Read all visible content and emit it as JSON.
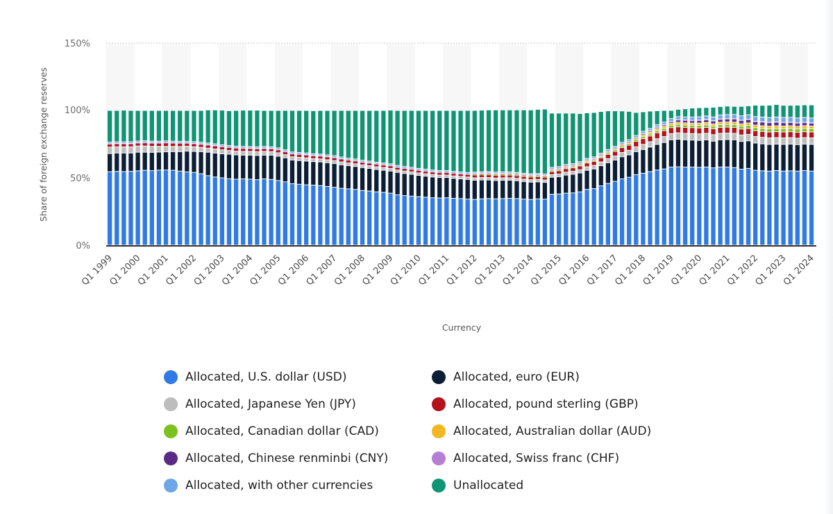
{
  "chart_data": {
    "type": "bar",
    "stacked": true,
    "title": "",
    "xlabel": "Currency",
    "ylabel": "Share of foreign exchange reserves",
    "ylim": [
      0,
      150
    ],
    "yticks": [
      "0%",
      "50%",
      "100%",
      "150%"
    ],
    "ytick_values": [
      0,
      50,
      100,
      150
    ],
    "grid": true,
    "legend_position": "bottom",
    "xtick_labels": [
      "Q1 1999",
      "Q1 2000",
      "Q1 2001",
      "Q1 2002",
      "Q1 2003",
      "Q1 2004",
      "Q1 2005",
      "Q1 2006",
      "Q1 2007",
      "Q1 2008",
      "Q1 2009",
      "Q1 2010",
      "Q1 2011",
      "Q1 2012",
      "Q1 2013",
      "Q1 2014",
      "Q1 2015",
      "Q1 2016",
      "Q1 2017",
      "Q1 2018",
      "Q1 2019",
      "Q1 2020",
      "Q1 2021",
      "Q1 2022",
      "Q1 2023",
      "Q1 2024"
    ],
    "categories_note_first": "Q1 1999",
    "categories_note_last": "Q1 2024",
    "series": [
      {
        "name": "Allocated, U.S. dollar (USD)",
        "color": "#2f7ae5",
        "values": [
          54.5,
          54.8,
          54.6,
          54.8,
          55.2,
          55.6,
          55.3,
          55.7,
          55.8,
          55.6,
          55.0,
          54.4,
          54.0,
          53.0,
          51.6,
          50.6,
          50.0,
          49.3,
          49.0,
          49.2,
          49.0,
          48.6,
          49.2,
          48.8,
          48.0,
          47.0,
          45.6,
          45.2,
          44.8,
          44.6,
          44.2,
          43.6,
          43.0,
          42.2,
          41.8,
          41.4,
          40.6,
          40.2,
          39.6,
          39.2,
          38.6,
          37.4,
          36.8,
          36.4,
          36.0,
          35.6,
          35.2,
          35.0,
          35.2,
          34.8,
          34.6,
          34.2,
          34.0,
          34.4,
          34.6,
          34.4,
          34.6,
          34.8,
          34.6,
          34.2,
          34.0,
          34.4,
          34.2,
          37.8,
          38.0,
          38.6,
          38.8,
          39.6,
          41.4,
          42.0,
          44.0,
          45.8,
          47.4,
          49.2,
          50.4,
          52.4,
          53.4,
          54.6,
          55.8,
          56.6,
          58.0,
          58.2,
          58.0,
          58.0,
          57.8,
          58.0,
          57.4,
          58.0,
          58.0,
          57.6,
          56.4,
          57.0,
          55.6,
          55.2,
          55.0,
          55.4,
          55.0,
          55.2,
          55.0,
          55.4,
          55.0
        ]
      },
      {
        "name": "Allocated, euro (EUR)",
        "color": "#0c1e36",
        "values": [
          13.5,
          13.6,
          13.8,
          13.6,
          13.8,
          13.4,
          13.6,
          13.4,
          13.5,
          13.8,
          14.4,
          15.4,
          15.6,
          16.4,
          17.4,
          17.8,
          17.8,
          18.2,
          18.0,
          17.6,
          17.8,
          18.0,
          17.6,
          18.0,
          18.0,
          17.8,
          17.6,
          17.6,
          17.6,
          17.4,
          17.6,
          17.6,
          17.6,
          17.4,
          17.2,
          17.0,
          17.0,
          16.8,
          16.6,
          16.4,
          16.4,
          16.6,
          16.4,
          16.2,
          15.8,
          15.6,
          15.4,
          15.2,
          15.0,
          14.8,
          14.6,
          14.6,
          14.2,
          14.0,
          13.8,
          13.6,
          13.6,
          13.4,
          13.2,
          13.0,
          12.8,
          12.6,
          12.4,
          12.6,
          12.8,
          13.4,
          13.8,
          14.0,
          14.2,
          14.6,
          15.0,
          15.4,
          15.8,
          16.4,
          16.6,
          17.0,
          17.6,
          18.2,
          19.0,
          19.6,
          20.2,
          20.4,
          20.2,
          20.0,
          20.0,
          20.2,
          19.8,
          20.2,
          20.4,
          20.6,
          20.6,
          20.4,
          20.2,
          20.0,
          19.8,
          19.6,
          19.8,
          19.8,
          19.6,
          19.6,
          19.8
        ]
      },
      {
        "name": "Allocated, Japanese Yen (JPY)",
        "color": "#bdbdbd",
        "values": [
          4.8,
          4.6,
          4.6,
          4.6,
          4.6,
          4.6,
          4.4,
          4.2,
          4.0,
          3.9,
          3.8,
          3.6,
          3.4,
          3.2,
          3.0,
          3.0,
          3.0,
          2.8,
          2.8,
          2.8,
          2.8,
          2.8,
          2.8,
          2.6,
          2.6,
          2.4,
          2.4,
          2.4,
          2.4,
          2.2,
          2.2,
          2.2,
          2.2,
          2.2,
          2.0,
          2.0,
          2.0,
          2.0,
          2.0,
          2.0,
          2.0,
          1.8,
          1.8,
          1.8,
          1.8,
          1.8,
          1.8,
          1.8,
          1.8,
          1.8,
          1.8,
          1.8,
          1.8,
          1.8,
          1.8,
          1.8,
          1.8,
          1.8,
          1.8,
          1.8,
          1.8,
          1.8,
          1.8,
          2.0,
          2.0,
          2.2,
          2.2,
          2.4,
          2.6,
          2.6,
          2.8,
          3.0,
          3.0,
          3.2,
          3.4,
          3.6,
          3.8,
          4.0,
          4.2,
          4.4,
          4.6,
          4.8,
          4.8,
          4.8,
          4.8,
          4.8,
          4.8,
          4.8,
          4.8,
          4.8,
          4.8,
          4.8,
          4.8,
          4.8,
          4.8,
          4.8,
          4.8,
          4.8,
          4.8,
          4.8,
          4.8
        ]
      },
      {
        "name": "Allocated, pound sterling (GBP)",
        "color": "#b5121b",
        "values": [
          2.2,
          2.2,
          2.2,
          2.2,
          2.2,
          2.4,
          2.4,
          2.4,
          2.6,
          2.4,
          2.4,
          2.2,
          2.2,
          2.2,
          2.2,
          2.2,
          2.2,
          2.2,
          2.2,
          2.2,
          2.2,
          2.2,
          2.2,
          2.2,
          2.2,
          2.2,
          2.2,
          2.2,
          2.2,
          2.2,
          2.2,
          2.2,
          2.2,
          2.2,
          2.2,
          2.2,
          2.0,
          2.0,
          2.0,
          2.0,
          2.0,
          2.0,
          2.0,
          2.0,
          2.0,
          2.0,
          2.0,
          2.0,
          2.0,
          2.0,
          2.0,
          2.0,
          2.0,
          2.0,
          2.0,
          2.0,
          2.0,
          2.0,
          2.0,
          2.0,
          2.0,
          2.0,
          2.0,
          2.2,
          2.4,
          2.6,
          2.6,
          2.8,
          2.8,
          3.0,
          3.0,
          3.2,
          3.4,
          3.6,
          3.8,
          4.0,
          4.2,
          4.2,
          4.4,
          4.4,
          4.4,
          4.4,
          4.4,
          4.4,
          4.4,
          4.4,
          4.4,
          4.4,
          4.4,
          4.4,
          4.4,
          4.4,
          4.4,
          4.4,
          4.4,
          4.4,
          4.4,
          4.4,
          4.4,
          4.4,
          4.4
        ]
      },
      {
        "name": "Allocated, Canadian dollar (CAD)",
        "color": "#7cc21f",
        "values": [
          0,
          0,
          0,
          0,
          0,
          0,
          0,
          0,
          0,
          0,
          0,
          0,
          0,
          0,
          0,
          0,
          0,
          0,
          0,
          0,
          0,
          0,
          0,
          0,
          0,
          0,
          0,
          0,
          0,
          0,
          0,
          0,
          0,
          0,
          0,
          0,
          0,
          0,
          0,
          0,
          0,
          0,
          0,
          0,
          0,
          0,
          0,
          0,
          0,
          0,
          0,
          0,
          0.5,
          0.5,
          0.6,
          0.6,
          0.6,
          0.6,
          0.6,
          0.6,
          0.6,
          0.6,
          0.6,
          0.8,
          0.8,
          0.8,
          0.8,
          0.9,
          1.0,
          1.0,
          1.0,
          1.1,
          1.2,
          1.2,
          1.3,
          1.4,
          1.5,
          1.5,
          1.6,
          1.7,
          1.8,
          1.8,
          1.8,
          1.8,
          1.9,
          1.9,
          1.9,
          2.0,
          2.0,
          2.1,
          2.1,
          2.2,
          2.2,
          2.3,
          2.4,
          2.4,
          2.4,
          2.4,
          2.4,
          2.5,
          2.4
        ]
      },
      {
        "name": "Allocated, Australian dollar (AUD)",
        "color": "#f2b722",
        "values": [
          0,
          0,
          0,
          0,
          0,
          0,
          0,
          0,
          0,
          0,
          0,
          0,
          0,
          0,
          0,
          0,
          0,
          0,
          0,
          0,
          0,
          0,
          0,
          0,
          0,
          0,
          0,
          0,
          0,
          0,
          0,
          0,
          0,
          0,
          0,
          0,
          0,
          0,
          0,
          0,
          0,
          0,
          0,
          0,
          0,
          0,
          0,
          0,
          0,
          0,
          0,
          0,
          0.5,
          0.5,
          0.6,
          0.6,
          0.6,
          0.6,
          0.6,
          0.6,
          0.6,
          0.6,
          0.6,
          0.8,
          0.8,
          0.8,
          0.8,
          0.8,
          0.9,
          0.9,
          1.0,
          1.0,
          1.1,
          1.2,
          1.2,
          1.3,
          1.4,
          1.4,
          1.5,
          1.5,
          1.6,
          1.6,
          1.6,
          1.6,
          1.7,
          1.7,
          1.7,
          1.8,
          1.8,
          1.8,
          1.8,
          1.9,
          1.9,
          1.9,
          1.9,
          2.0,
          2.0,
          2.0,
          2.0,
          2.0,
          2.0
        ]
      },
      {
        "name": "Allocated, Chinese renminbi (CNY)",
        "color": "#5b2a86",
        "values": [
          0,
          0,
          0,
          0,
          0,
          0,
          0,
          0,
          0,
          0,
          0,
          0,
          0,
          0,
          0,
          0,
          0,
          0,
          0,
          0,
          0,
          0,
          0,
          0,
          0,
          0,
          0,
          0,
          0,
          0,
          0,
          0,
          0,
          0,
          0,
          0,
          0,
          0,
          0,
          0,
          0,
          0,
          0,
          0,
          0,
          0,
          0,
          0,
          0,
          0,
          0,
          0,
          0,
          0,
          0,
          0,
          0,
          0,
          0,
          0,
          0,
          0,
          0,
          0,
          0,
          0,
          0,
          0,
          0,
          0,
          0,
          0,
          0,
          0,
          0,
          0,
          0.8,
          0.9,
          1.0,
          1.1,
          1.2,
          1.8,
          1.9,
          1.9,
          2.0,
          2.1,
          2.2,
          2.3,
          2.3,
          2.4,
          2.5,
          2.6,
          2.7,
          2.8,
          2.7,
          2.7,
          2.6,
          2.5,
          2.4,
          2.3,
          2.2
        ]
      },
      {
        "name": "Allocated, Swiss franc (CHF)",
        "color": "#b57fd6",
        "values": [
          0.3,
          0.3,
          0.3,
          0.3,
          0.3,
          0.3,
          0.3,
          0.3,
          0.3,
          0.3,
          0.3,
          0.3,
          0.4,
          0.4,
          0.4,
          0.4,
          0.3,
          0.3,
          0.3,
          0.3,
          0.2,
          0.2,
          0.2,
          0.2,
          0.2,
          0.2,
          0.2,
          0.2,
          0.2,
          0.2,
          0.2,
          0.2,
          0.2,
          0.2,
          0.2,
          0.2,
          0.2,
          0.2,
          0.2,
          0.2,
          0.2,
          0.2,
          0.2,
          0.2,
          0.2,
          0.2,
          0.2,
          0.2,
          0.2,
          0.2,
          0.2,
          0.2,
          0.2,
          0.2,
          0.2,
          0.2,
          0.2,
          0.2,
          0.2,
          0.2,
          0.2,
          0.2,
          0.2,
          0.3,
          0.3,
          0.3,
          0.3,
          0.3,
          0.3,
          0.2,
          0.2,
          0.2,
          0.2,
          0.2,
          0.2,
          0.2,
          0.2,
          0.2,
          0.2,
          0.2,
          0.2,
          0.2,
          0.2,
          0.2,
          0.2,
          0.2,
          0.2,
          0.2,
          0.2,
          0.2,
          0.2,
          0.2,
          0.2,
          0.2,
          0.2,
          0.2,
          0.2,
          0.2,
          0.2,
          0.2,
          0.2
        ]
      },
      {
        "name": "Allocated, with other currencies",
        "color": "#6fa6e6",
        "values": [
          1.2,
          1.2,
          1.2,
          1.2,
          1.2,
          1.2,
          1.2,
          1.2,
          1.2,
          1.2,
          1.2,
          1.2,
          1.2,
          1.2,
          1.2,
          1.2,
          1.2,
          1.2,
          1.2,
          1.2,
          1.2,
          1.2,
          1.2,
          1.2,
          1.2,
          1.2,
          1.2,
          1.2,
          1.2,
          1.2,
          1.2,
          1.2,
          1.2,
          1.2,
          1.2,
          1.2,
          1.2,
          1.2,
          1.2,
          1.2,
          1.2,
          1.2,
          1.2,
          1.2,
          1.2,
          1.2,
          1.2,
          1.2,
          1.2,
          1.2,
          1.2,
          1.2,
          1.0,
          1.0,
          1.0,
          1.0,
          1.0,
          1.0,
          1.0,
          1.0,
          1.0,
          1.0,
          1.0,
          1.2,
          1.2,
          1.2,
          1.2,
          1.2,
          1.2,
          1.2,
          1.3,
          1.3,
          1.3,
          1.4,
          1.4,
          1.5,
          1.6,
          1.6,
          1.7,
          1.8,
          2.0,
          2.2,
          2.3,
          2.4,
          2.5,
          2.6,
          2.8,
          2.9,
          3.0,
          3.1,
          3.2,
          3.3,
          3.4,
          3.5,
          3.5,
          3.6,
          3.6,
          3.6,
          3.6,
          3.6,
          3.6
        ]
      },
      {
        "name": "Unallocated",
        "color": "#0f9474",
        "values": [
          23.5,
          23.3,
          23.5,
          23.3,
          22.7,
          22.5,
          22.8,
          22.8,
          22.6,
          22.8,
          22.9,
          22.9,
          23.2,
          23.6,
          24.6,
          25.2,
          25.7,
          25.8,
          26.5,
          26.9,
          27.0,
          27.2,
          26.8,
          27.0,
          27.8,
          29.2,
          30.8,
          31.2,
          31.6,
          32.0,
          32.4,
          33.0,
          33.6,
          34.6,
          35.4,
          36.0,
          37.0,
          37.6,
          38.4,
          39.0,
          39.8,
          40.8,
          41.6,
          42.2,
          43.0,
          43.6,
          44.2,
          44.6,
          44.6,
          45.2,
          45.6,
          46.0,
          45.8,
          45.8,
          45.8,
          46.2,
          46.0,
          46.0,
          46.4,
          47.0,
          47.4,
          47.6,
          48.2,
          40.3,
          39.7,
          38.1,
          37.5,
          35.7,
          33.8,
          33.0,
          30.9,
          28.7,
          26.3,
          23.2,
          21.0,
          17.1,
          14.5,
          12.9,
          10.4,
          8.7,
          6.0,
          5.4,
          6.0,
          6.7,
          6.7,
          6.3,
          7.2,
          6.3,
          6.3,
          6.0,
          7.0,
          6.6,
          8.5,
          8.7,
          9.2,
          9.3,
          9.0,
          8.9,
          9.5,
          9.3,
          9.7
        ]
      }
    ]
  }
}
